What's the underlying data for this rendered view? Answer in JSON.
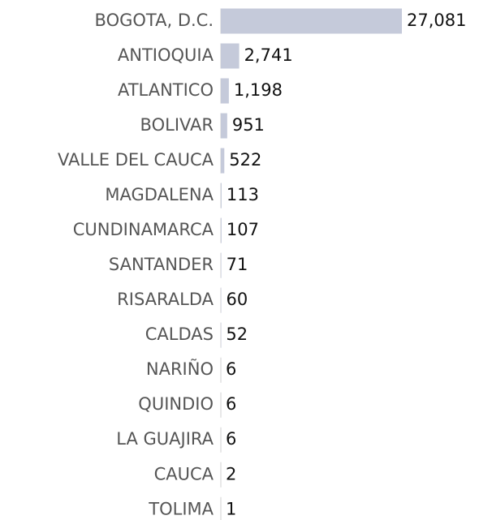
{
  "chart_data": {
    "type": "bar",
    "orientation": "horizontal",
    "categories": [
      "BOGOTA, D.C.",
      "ANTIOQUIA",
      "ATLANTICO",
      "BOLIVAR",
      "VALLE DEL CAUCA",
      "MAGDALENA",
      "CUNDINAMARCA",
      "SANTANDER",
      "RISARALDA",
      "CALDAS",
      "NARIÑO",
      "QUINDIO",
      "LA GUAJIRA",
      "CAUCA",
      "TOLIMA"
    ],
    "values": [
      27081,
      2741,
      1198,
      951,
      522,
      113,
      107,
      71,
      60,
      52,
      6,
      6,
      6,
      2,
      1
    ],
    "value_labels": [
      "27,081",
      "2,741",
      "1,198",
      "951",
      "522",
      "113",
      "107",
      "71",
      "60",
      "52",
      "6",
      "6",
      "6",
      "2",
      "1"
    ],
    "color": "#c5cada"
  }
}
